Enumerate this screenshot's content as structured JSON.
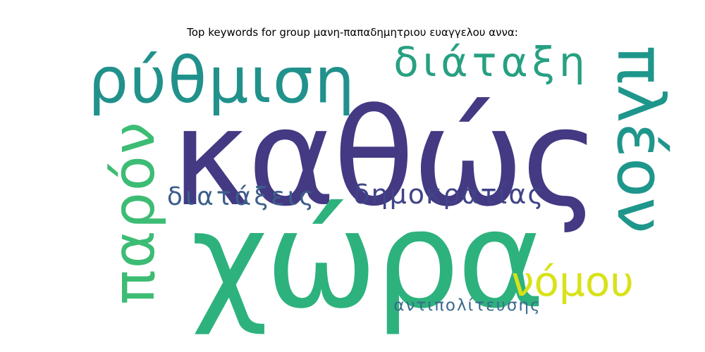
{
  "title": "Top keywords for group μανη-παπαδημητριου ευαγγελου αννα:",
  "words": [
    {
      "text": "καθώς",
      "color": "#443983"
    },
    {
      "text": "χώρα",
      "color": "#2db27d"
    },
    {
      "text": "ρύθμιση",
      "color": "#21918c"
    },
    {
      "text": "διάταξη",
      "color": "#27a082"
    },
    {
      "text": "πλέον",
      "color": "#1f968b"
    },
    {
      "text": "παρόν",
      "color": "#3dbc74"
    },
    {
      "text": "διατάξεις",
      "color": "#3b5e8a"
    },
    {
      "text": "δημοκρατίας",
      "color": "#414487"
    },
    {
      "text": "νόμου",
      "color": "#d8e219"
    },
    {
      "text": "αντιπολίτευσης",
      "color": "#3a6a8c"
    }
  ]
}
